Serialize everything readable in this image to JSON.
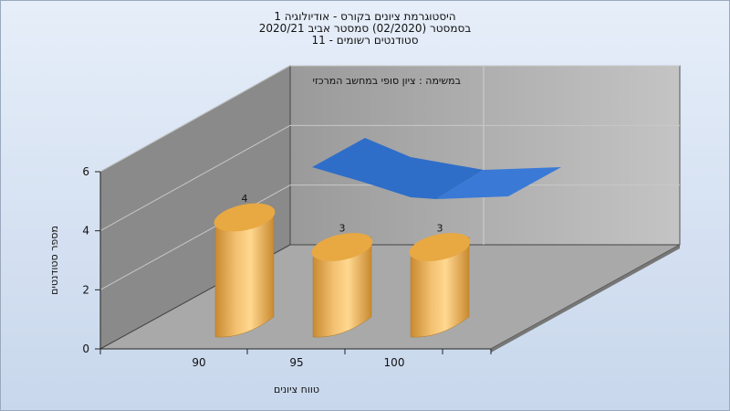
{
  "chart_data": {
    "type": "bar",
    "title": [
      "היסטוגרמת ציונים בקורס - אודיולוגיה 1",
      "בסמסטר (02/2020) סמסטר אביב 2020/21",
      "סטודנטים רשומים - 11"
    ],
    "xlabel": "טווח ציונים",
    "ylabel": "מספר סטודנטים",
    "annotation": "במשימה : ציון סופי במחשב המרכזי",
    "categories": [
      "90",
      "95",
      "100"
    ],
    "values": [
      4,
      3,
      3
    ],
    "ylim": [
      0,
      6
    ],
    "yticks": [
      "0",
      "2",
      "4",
      "6"
    ],
    "grid": true,
    "bar_color": "#e0a040",
    "trend_color": "#2f6ec8"
  }
}
